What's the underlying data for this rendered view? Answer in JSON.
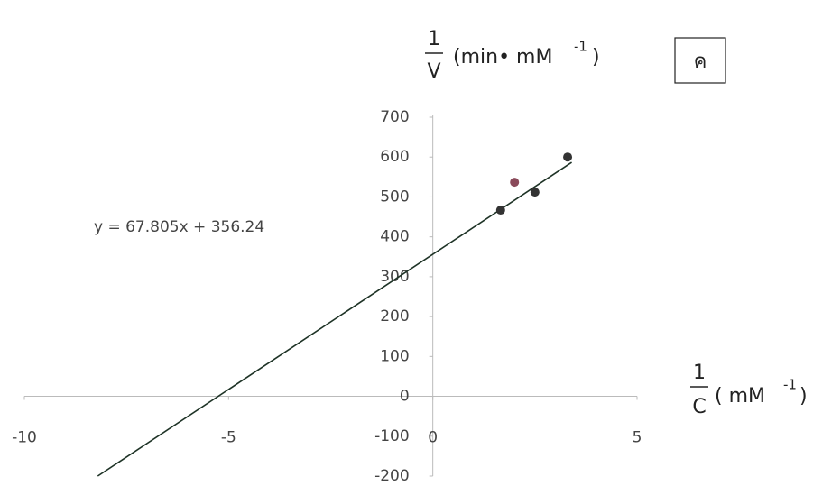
{
  "chart_data": {
    "type": "scatter",
    "x": [
      1.66,
      2.0,
      2.5,
      3.3
    ],
    "series": [
      {
        "values": [
          467,
          537,
          512,
          600
        ],
        "colors": [
          "#333333",
          "#8a4a5a",
          "#333333",
          "#333333"
        ]
      }
    ],
    "trendline": {
      "label": "y = 67.805x + 356.24",
      "slope": 67.805,
      "intercept": 356.24,
      "color": "#1e3326"
    },
    "xlim": [
      -10,
      5
    ],
    "xticks": [
      -10,
      -5,
      0,
      5
    ],
    "ylim": [
      -200,
      700
    ],
    "yticks": [
      -200,
      -100,
      0,
      100,
      200,
      300,
      400,
      500,
      600,
      700
    ],
    "ylabel": {
      "numerator": "1",
      "denominator": "V",
      "unit": "(min• mM",
      "exponent": "-1",
      "close": ")"
    },
    "xlabel": {
      "numerator": "1",
      "denominator": "C",
      "unit": "( mM",
      "exponent": "-1",
      "close": ")"
    },
    "panel_label": "ค"
  }
}
